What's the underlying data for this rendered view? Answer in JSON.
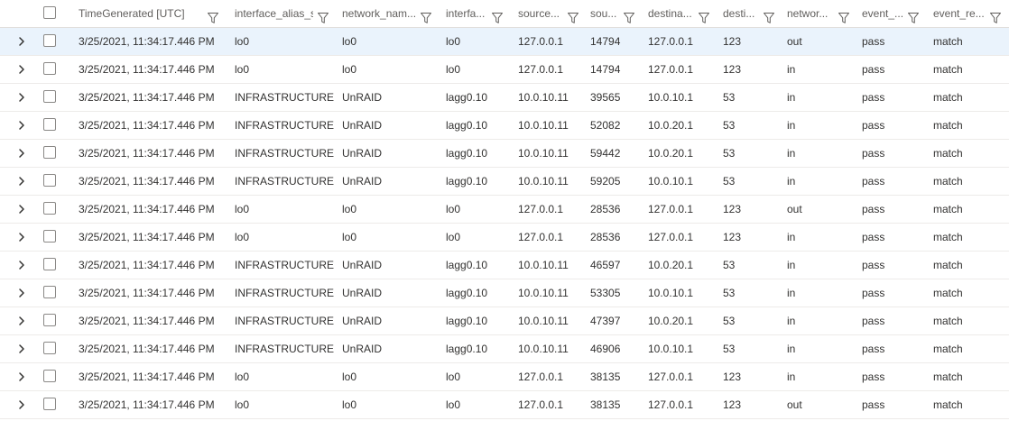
{
  "columns": [
    {
      "key": "time",
      "label": "TimeGenerated [UTC]"
    },
    {
      "key": "iface_alias",
      "label": "interface_alias_s"
    },
    {
      "key": "net_name",
      "label": "network_nam..."
    },
    {
      "key": "iface",
      "label": "interfa..."
    },
    {
      "key": "src",
      "label": "source..."
    },
    {
      "key": "sport",
      "label": "sou..."
    },
    {
      "key": "dst",
      "label": "destina..."
    },
    {
      "key": "dport",
      "label": "desti..."
    },
    {
      "key": "dir",
      "label": "networ..."
    },
    {
      "key": "action",
      "label": "event_..."
    },
    {
      "key": "reason",
      "label": "event_re..."
    }
  ],
  "rows": [
    [
      "3/25/2021, 11:34:17.446 PM",
      "lo0",
      "lo0",
      "lo0",
      "127.0.0.1",
      "14794",
      "127.0.0.1",
      "123",
      "out",
      "pass",
      "match"
    ],
    [
      "3/25/2021, 11:34:17.446 PM",
      "lo0",
      "lo0",
      "lo0",
      "127.0.0.1",
      "14794",
      "127.0.0.1",
      "123",
      "in",
      "pass",
      "match"
    ],
    [
      "3/25/2021, 11:34:17.446 PM",
      "INFRASTRUCTURE",
      "UnRAID",
      "lagg0.10",
      "10.0.10.11",
      "39565",
      "10.0.10.1",
      "53",
      "in",
      "pass",
      "match"
    ],
    [
      "3/25/2021, 11:34:17.446 PM",
      "INFRASTRUCTURE",
      "UnRAID",
      "lagg0.10",
      "10.0.10.11",
      "52082",
      "10.0.20.1",
      "53",
      "in",
      "pass",
      "match"
    ],
    [
      "3/25/2021, 11:34:17.446 PM",
      "INFRASTRUCTURE",
      "UnRAID",
      "lagg0.10",
      "10.0.10.11",
      "59442",
      "10.0.20.1",
      "53",
      "in",
      "pass",
      "match"
    ],
    [
      "3/25/2021, 11:34:17.446 PM",
      "INFRASTRUCTURE",
      "UnRAID",
      "lagg0.10",
      "10.0.10.11",
      "59205",
      "10.0.10.1",
      "53",
      "in",
      "pass",
      "match"
    ],
    [
      "3/25/2021, 11:34:17.446 PM",
      "lo0",
      "lo0",
      "lo0",
      "127.0.0.1",
      "28536",
      "127.0.0.1",
      "123",
      "out",
      "pass",
      "match"
    ],
    [
      "3/25/2021, 11:34:17.446 PM",
      "lo0",
      "lo0",
      "lo0",
      "127.0.0.1",
      "28536",
      "127.0.0.1",
      "123",
      "in",
      "pass",
      "match"
    ],
    [
      "3/25/2021, 11:34:17.446 PM",
      "INFRASTRUCTURE",
      "UnRAID",
      "lagg0.10",
      "10.0.10.11",
      "46597",
      "10.0.20.1",
      "53",
      "in",
      "pass",
      "match"
    ],
    [
      "3/25/2021, 11:34:17.446 PM",
      "INFRASTRUCTURE",
      "UnRAID",
      "lagg0.10",
      "10.0.10.11",
      "53305",
      "10.0.10.1",
      "53",
      "in",
      "pass",
      "match"
    ],
    [
      "3/25/2021, 11:34:17.446 PM",
      "INFRASTRUCTURE",
      "UnRAID",
      "lagg0.10",
      "10.0.10.11",
      "47397",
      "10.0.20.1",
      "53",
      "in",
      "pass",
      "match"
    ],
    [
      "3/25/2021, 11:34:17.446 PM",
      "INFRASTRUCTURE",
      "UnRAID",
      "lagg0.10",
      "10.0.10.11",
      "46906",
      "10.0.10.1",
      "53",
      "in",
      "pass",
      "match"
    ],
    [
      "3/25/2021, 11:34:17.446 PM",
      "lo0",
      "lo0",
      "lo0",
      "127.0.0.1",
      "38135",
      "127.0.0.1",
      "123",
      "in",
      "pass",
      "match"
    ],
    [
      "3/25/2021, 11:34:17.446 PM",
      "lo0",
      "lo0",
      "lo0",
      "127.0.0.1",
      "38135",
      "127.0.0.1",
      "123",
      "out",
      "pass",
      "match"
    ]
  ],
  "selected_row": 0,
  "icons": {
    "expand": "chevron-right-icon",
    "filter": "filter-icon",
    "checkbox": "checkbox-icon"
  },
  "colors": {
    "selected_row_bg": "#eaf3fc",
    "header_text": "#605e5c",
    "text": "#323130",
    "border": "#edebe9"
  }
}
